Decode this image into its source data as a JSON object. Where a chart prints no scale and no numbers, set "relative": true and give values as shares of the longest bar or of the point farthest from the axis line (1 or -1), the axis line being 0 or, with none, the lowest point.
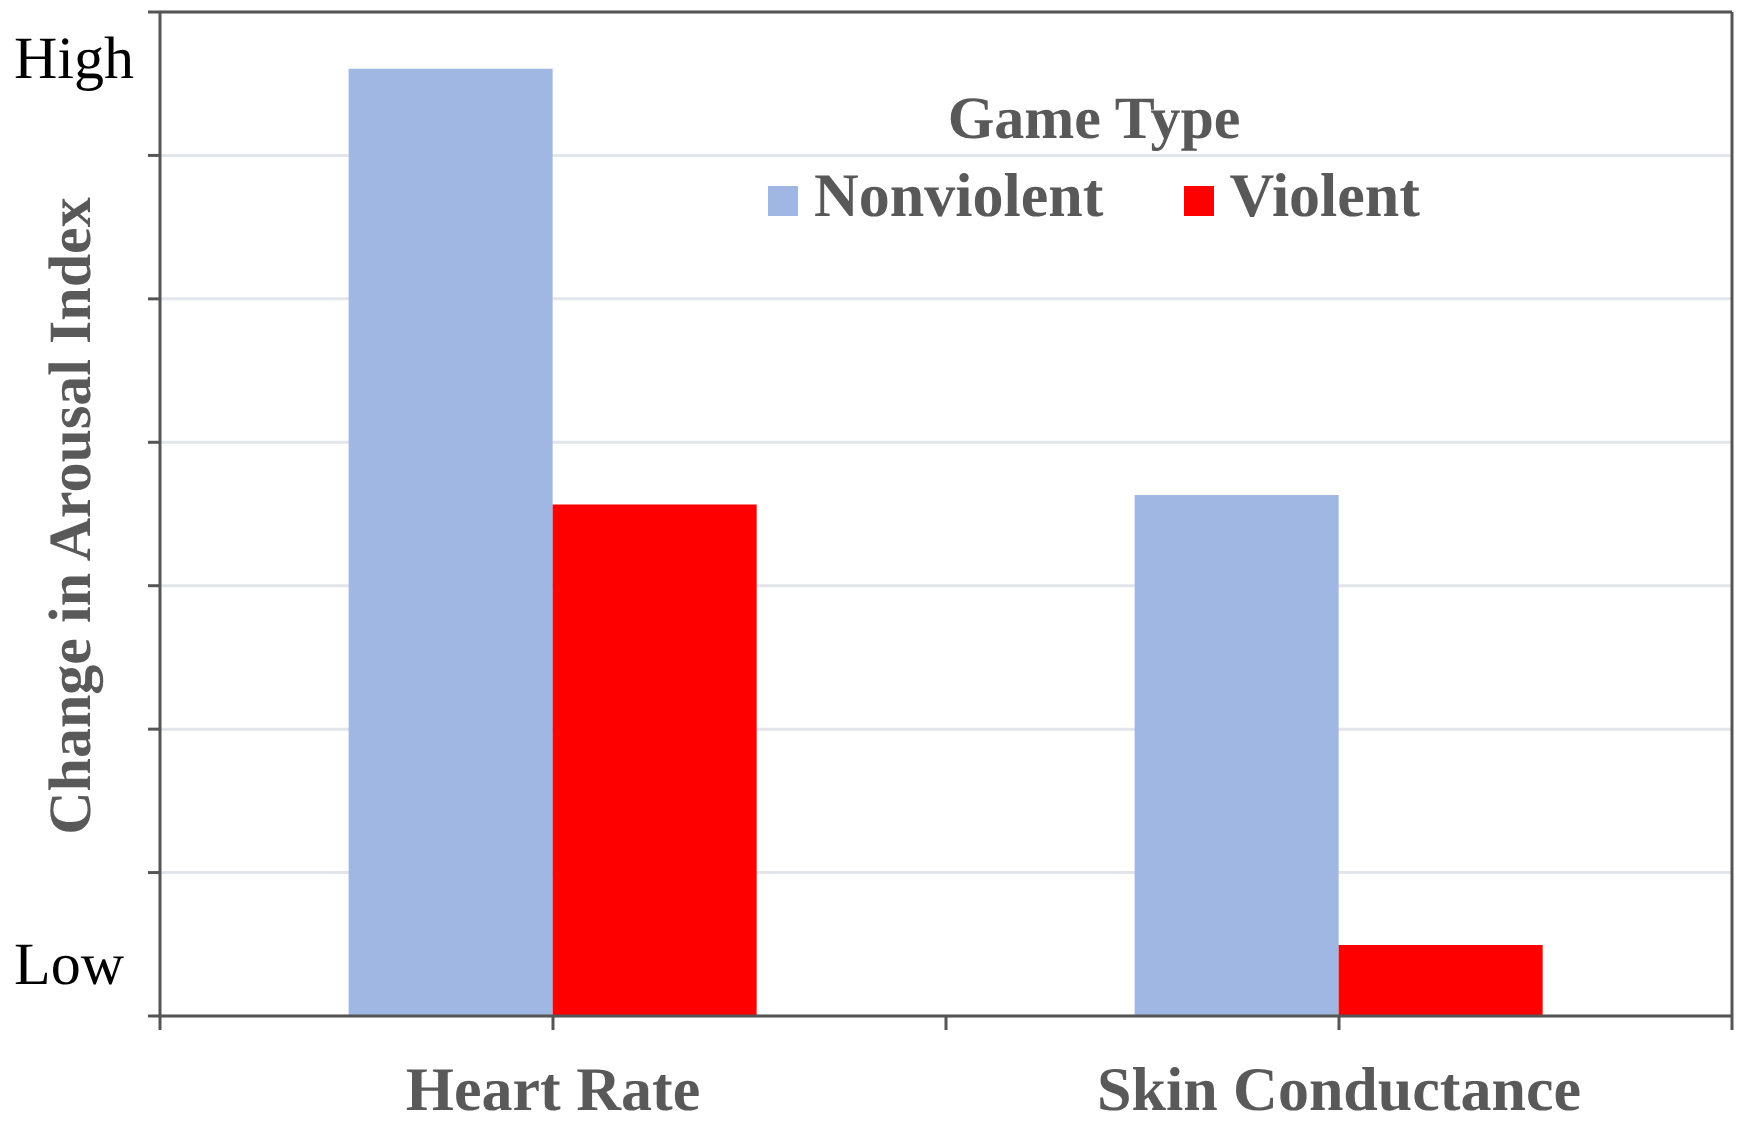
{
  "chart_data": {
    "type": "bar",
    "ylabel": "Change in Arousal Index",
    "legend_title": "Game Type",
    "categories": [
      "Heart Rate",
      "Skin Conductance"
    ],
    "series": [
      {
        "name": "Nonviolent",
        "color": "#a0b7e4",
        "values": [
          1,
          0.55
        ]
      },
      {
        "name": "Violent",
        "color": "#ff0000",
        "values": [
          0.54,
          0.075
        ]
      }
    ],
    "relative": true,
    "annotations": [
      "High",
      "Low"
    ],
    "grid": "y",
    "legend": "top right"
  }
}
